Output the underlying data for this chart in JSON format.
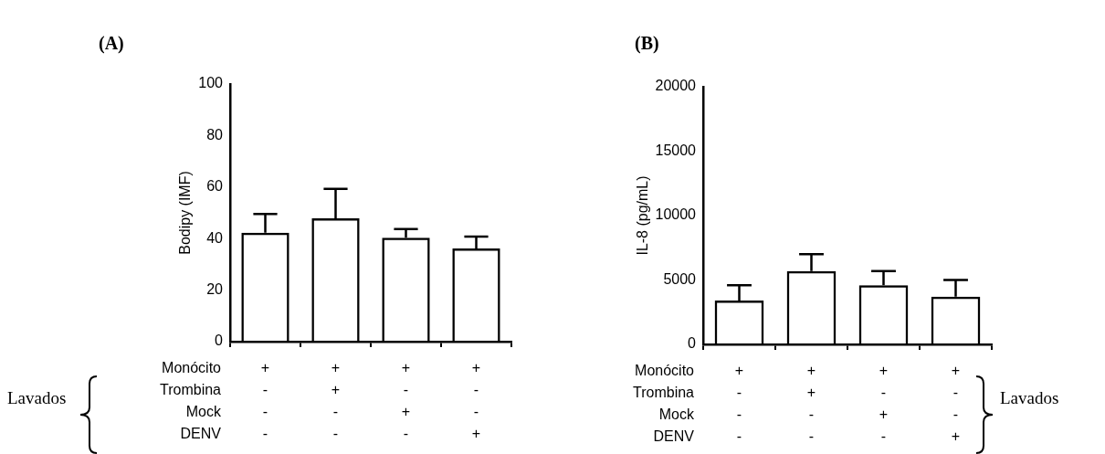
{
  "chart_data": [
    {
      "type": "bar",
      "title": "(A)",
      "ylabel": "Bodipy (IMF)",
      "categories": [
        "+\n-\n-\n-",
        "+\n+\n-\n-",
        "+\n-\n+\n-",
        "+\n-\n-\n+"
      ],
      "values": [
        42.3,
        47.9,
        40.3,
        36.2
      ],
      "errors": [
        [
          42.3,
          49.6
        ],
        [
          47.9,
          59.3
        ],
        [
          40.3,
          43.7
        ],
        [
          36.2,
          40.8
        ]
      ],
      "color": "#000000",
      "ylim": [
        0,
        100
      ],
      "yticks": [
        0,
        20,
        40,
        60,
        80,
        100
      ],
      "grid": false,
      "annotations": [
        "Monócito",
        "Trombina",
        "Mock",
        "DENV",
        "Lavados"
      ]
    },
    {
      "type": "bar",
      "title": "(B)",
      "ylabel": "IL-8 (pg/mL)",
      "categories": [
        "+\n-\n-\n-",
        "+\n+\n-\n-",
        "+\n-\n+\n-",
        "+\n-\n-\n+"
      ],
      "values": [
        3400,
        5700,
        4600,
        3700
      ],
      "errors": [
        [
          3400,
          4600
        ],
        [
          5700,
          7000
        ],
        [
          4600,
          5700
        ],
        [
          3700,
          5000
        ]
      ],
      "color": "#000000",
      "ylim": [
        0,
        20000
      ],
      "yticks": [
        0,
        5000,
        10000,
        15000,
        20000
      ],
      "grid": false,
      "annotations": [
        "Monócito",
        "Trombina",
        "Mock",
        "DENV",
        "Lavados"
      ]
    }
  ]
}
